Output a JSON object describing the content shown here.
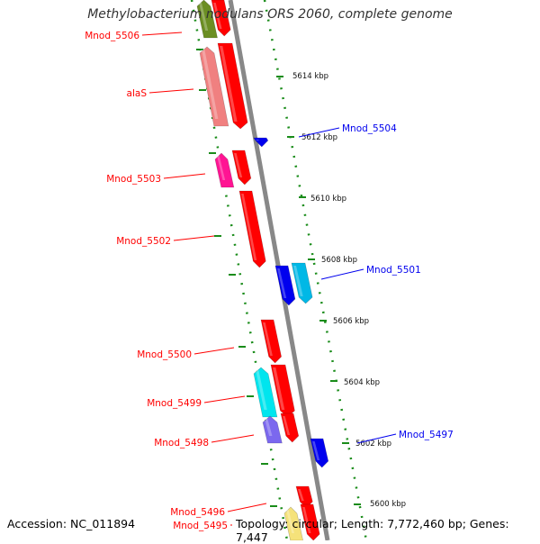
{
  "title": "Methylobacterium nodulans ORS 2060, complete genome",
  "footer": {
    "accession": "Accession: NC_011894",
    "summary": "Topology: circular; Length: 7,772,460 bp; Genes: 7,447"
  },
  "scale": {
    "ticks": [
      "5614 kbp",
      "5612 kbp",
      "5610 kbp",
      "5608 kbp",
      "5606 kbp",
      "5604 kbp",
      "5602 kbp",
      "5600 kbp"
    ]
  },
  "colors": {
    "backbone": "#888888",
    "ruler": "#1a8c1a",
    "red": "#ff0000",
    "blue": "#0000ee",
    "pink": "#f08080",
    "magenta": "#ff1493",
    "cyan": "#00e5ee",
    "purple": "#7b68ee",
    "olive": "#6b8e23",
    "yellow": "#f5e27a"
  },
  "genes": [
    {
      "label": "Mnod_5506",
      "color": "#ff0000",
      "strand": "left"
    },
    {
      "label": "alaS",
      "color": "#ff0000",
      "strand": "left"
    },
    {
      "label": "Mnod_5504",
      "color": "#0000ee",
      "strand": "right"
    },
    {
      "label": "Mnod_5503",
      "color": "#ff0000",
      "strand": "left"
    },
    {
      "label": "Mnod_5502",
      "color": "#ff0000",
      "strand": "left"
    },
    {
      "label": "Mnod_5501",
      "color": "#0000ee",
      "strand": "right"
    },
    {
      "label": "Mnod_5500",
      "color": "#ff0000",
      "strand": "left"
    },
    {
      "label": "Mnod_5499",
      "color": "#ff0000",
      "strand": "left"
    },
    {
      "label": "Mnod_5498",
      "color": "#ff0000",
      "strand": "left"
    },
    {
      "label": "Mnod_5497",
      "color": "#0000ee",
      "strand": "right"
    },
    {
      "label": "Mnod_5496",
      "color": "#ff0000",
      "strand": "left"
    },
    {
      "label": "Mnod_5495",
      "color": "#ff0000",
      "strand": "left"
    }
  ]
}
